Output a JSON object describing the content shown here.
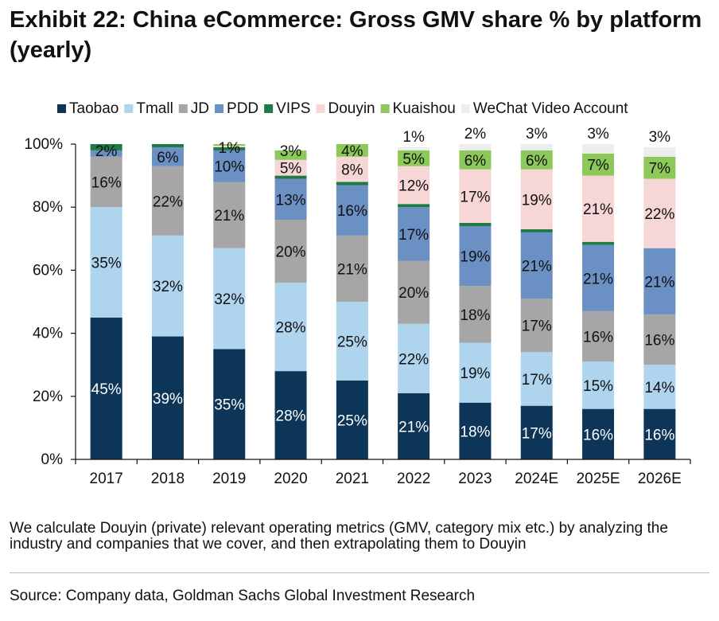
{
  "title": "Exhibit 22: China eCommerce: Gross GMV share % by platform (yearly)",
  "note": "We calculate Douyin (private) relevant operating metrics (GMV, category mix etc.) by analyzing the industry and companies that we cover, and then extrapolating them to Douyin",
  "source": "Source: Company data, Goldman Sachs Global Investment Research",
  "chart_data": {
    "type": "bar",
    "stacked": true,
    "categories": [
      "2017",
      "2018",
      "2019",
      "2020",
      "2021",
      "2022",
      "2023",
      "2024E",
      "2025E",
      "2026E"
    ],
    "series": [
      {
        "name": "Taobao",
        "color": "#0c3558",
        "values": [
          45,
          39,
          35,
          28,
          25,
          21,
          18,
          17,
          16,
          16
        ],
        "labels": [
          "45%",
          "39%",
          "35%",
          "28%",
          "25%",
          "21%",
          "18%",
          "17%",
          "16%",
          "16%"
        ]
      },
      {
        "name": "Tmall",
        "color": "#aed4ee",
        "values": [
          35,
          32,
          32,
          28,
          25,
          22,
          19,
          17,
          15,
          14
        ],
        "labels": [
          "35%",
          "32%",
          "32%",
          "28%",
          "25%",
          "22%",
          "19%",
          "17%",
          "15%",
          "14%"
        ]
      },
      {
        "name": "JD",
        "color": "#a6a6a6",
        "values": [
          16,
          22,
          21,
          20,
          21,
          20,
          18,
          17,
          16,
          16
        ],
        "labels": [
          "16%",
          "22%",
          "21%",
          "20%",
          "21%",
          "20%",
          "18%",
          "17%",
          "16%",
          "16%"
        ]
      },
      {
        "name": "PDD",
        "color": "#6b90c3",
        "values": [
          2,
          6,
          10,
          13,
          16,
          17,
          19,
          21,
          21,
          21
        ],
        "labels": [
          "2%",
          "6%",
          "10%",
          "13%",
          "16%",
          "17%",
          "19%",
          "21%",
          "21%",
          "21%"
        ]
      },
      {
        "name": "VIPS",
        "color": "#1f7a45",
        "values": [
          2,
          1,
          1,
          1,
          1,
          1,
          1,
          1,
          1,
          0
        ],
        "labels": [
          "",
          "",
          "1%",
          "",
          "",
          "",
          "",
          "",
          "",
          ""
        ]
      },
      {
        "name": "Douyin",
        "color": "#f6d6d6",
        "values": [
          0,
          0,
          0.5,
          5,
          8,
          12,
          17,
          19,
          21,
          22
        ],
        "labels": [
          "",
          "",
          "",
          "5%",
          "8%",
          "12%",
          "17%",
          "19%",
          "21%",
          "22%"
        ]
      },
      {
        "name": "Kuaishou",
        "color": "#8dc85a",
        "values": [
          0,
          0,
          0.5,
          3,
          4,
          5,
          6,
          6,
          7,
          7
        ],
        "labels": [
          "",
          "",
          "",
          "3%",
          "4%",
          "5%",
          "6%",
          "6%",
          "7%",
          "7%"
        ]
      },
      {
        "name": "WeChat Video Account",
        "color": "#ededed",
        "values": [
          0,
          0,
          0,
          0,
          0,
          1,
          2,
          3,
          3,
          3
        ],
        "labels": [
          "",
          "",
          "",
          "",
          "",
          "1%",
          "2%",
          "3%",
          "3%",
          "3%"
        ]
      }
    ],
    "ylim": [
      0,
      100
    ],
    "yticks": [
      "0%",
      "20%",
      "40%",
      "60%",
      "80%",
      "100%"
    ],
    "legend_position": "top",
    "grid": false
  }
}
